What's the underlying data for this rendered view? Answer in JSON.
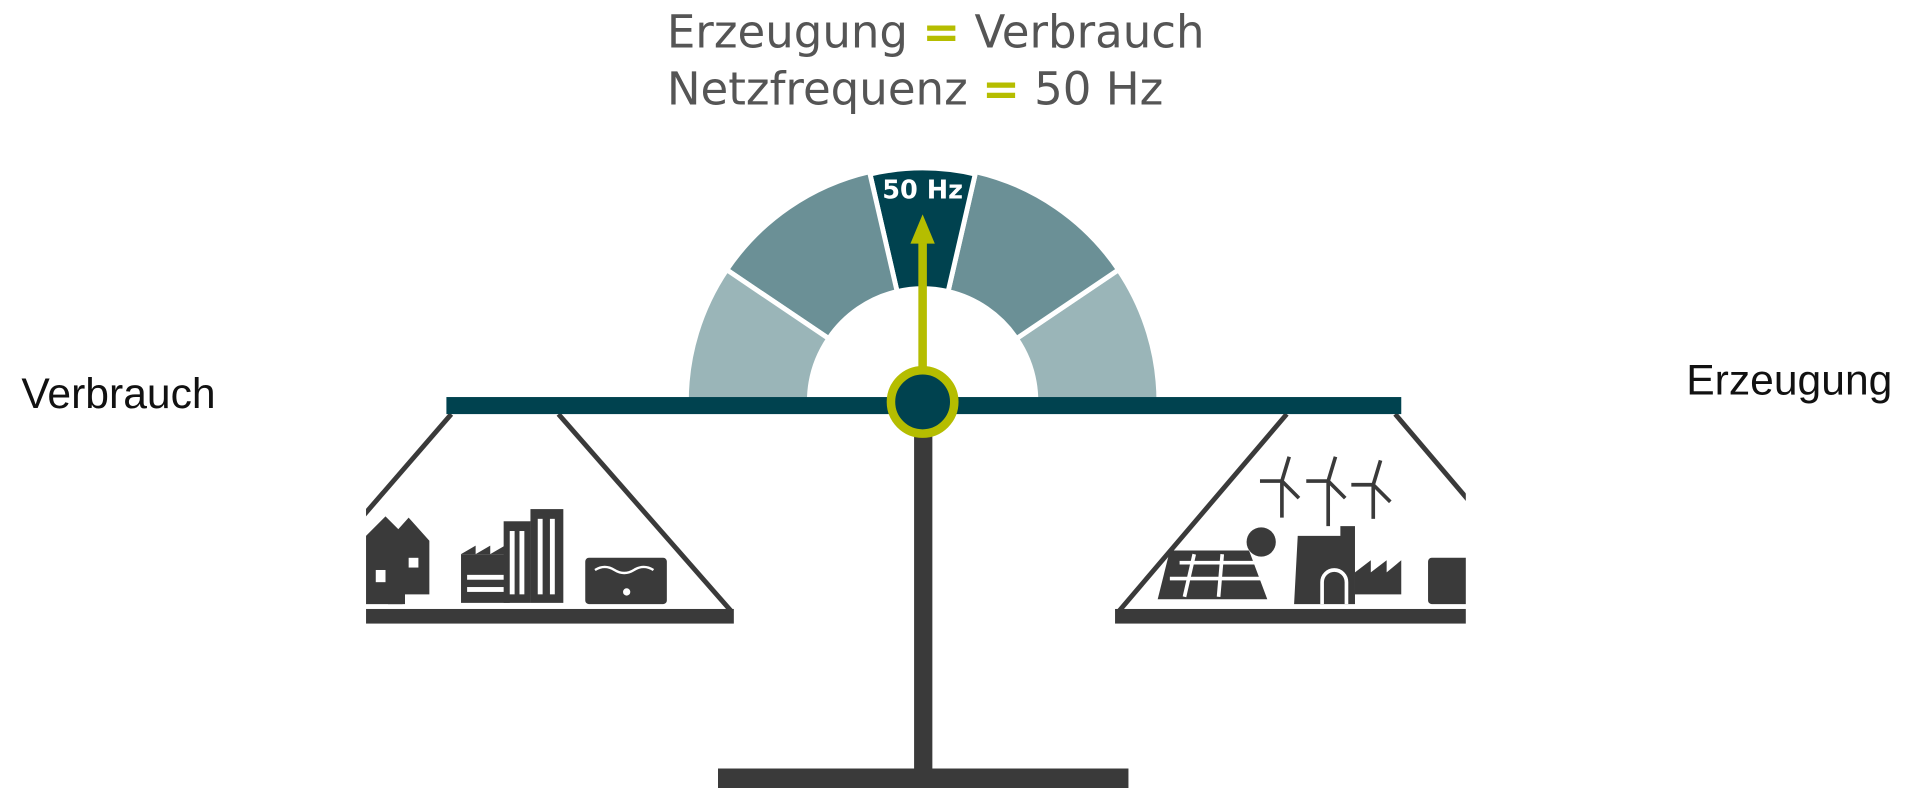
{
  "title": {
    "line1": {
      "left": "Erzeugung",
      "sign": "=",
      "right": "Verbrauch"
    },
    "line2": {
      "left": "Netzfrequenz",
      "sign": "=",
      "right": "50 Hz"
    }
  },
  "gauge": {
    "label": "50 Hz"
  },
  "labels": {
    "left": "Verbrauch",
    "right": "Erzeugung"
  }
}
